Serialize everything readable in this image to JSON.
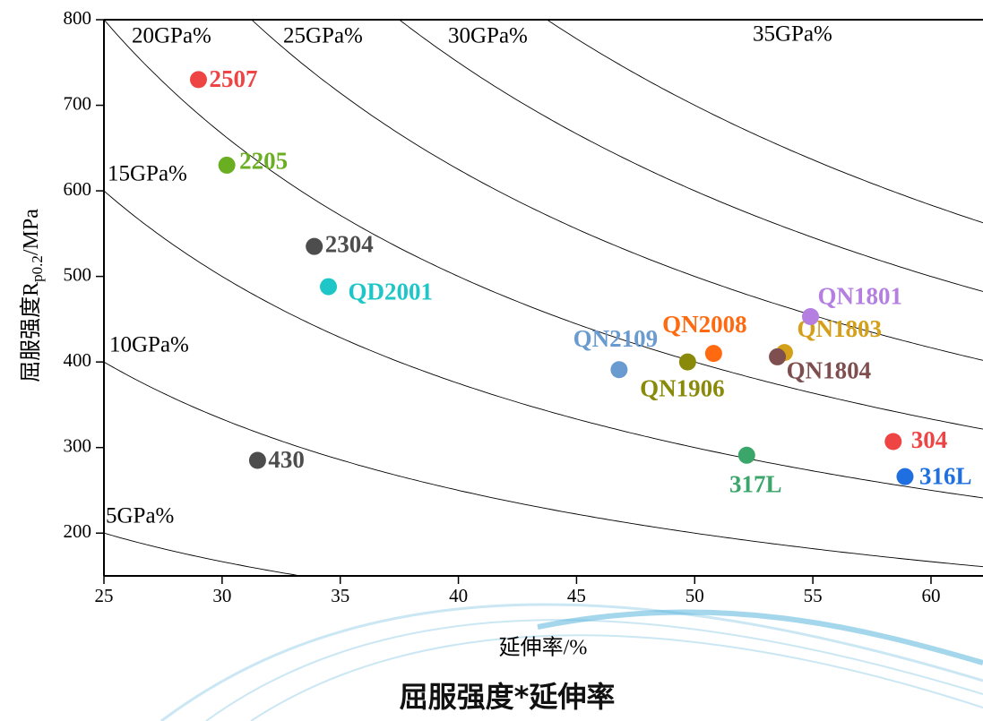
{
  "chart_data": {
    "type": "scatter",
    "caption": "屈服强度*延伸率",
    "xlabel": "延伸率/%",
    "ylabel": [
      "屈服强度R",
      "p0.2",
      "/MPa"
    ],
    "xlim": [
      25,
      62.2
    ],
    "ylim": [
      150,
      800
    ],
    "xticks": [
      25,
      30,
      35,
      40,
      45,
      50,
      55,
      60
    ],
    "yticks": [
      200,
      300,
      400,
      500,
      600,
      700,
      800
    ],
    "iso_curves": [
      {
        "value": 5,
        "label": "5GPa%"
      },
      {
        "value": 10,
        "label": "10GPa%"
      },
      {
        "value": 15,
        "label": "15GPa%"
      },
      {
        "value": 20,
        "label": "20GPa%"
      },
      {
        "value": 25,
        "label": "25GPa%"
      },
      {
        "value": 30,
        "label": "30GPa%"
      },
      {
        "value": 35,
        "label": "35GPa%"
      }
    ],
    "series": [
      {
        "name": "2507",
        "color": "#ee4444",
        "x": [
          29.0
        ],
        "values": [
          730
        ]
      },
      {
        "name": "2205",
        "color": "#6aae22",
        "x": [
          30.2
        ],
        "values": [
          630
        ]
      },
      {
        "name": "2304",
        "color": "#4d4d4d",
        "x": [
          33.9
        ],
        "values": [
          535
        ]
      },
      {
        "name": "QD2001",
        "color": "#1ec6c8",
        "x": [
          34.5
        ],
        "values": [
          488
        ]
      },
      {
        "name": "430",
        "color": "#4d4d4d",
        "x": [
          31.5
        ],
        "values": [
          285
        ]
      },
      {
        "name": "QN2109",
        "color": "#6a9bd0",
        "x": [
          46.8
        ],
        "values": [
          391
        ]
      },
      {
        "name": "QN1906",
        "color": "#8a8a0a",
        "x": [
          49.7
        ],
        "values": [
          400
        ]
      },
      {
        "name": "QN2008",
        "color": "#ff6a10",
        "x": [
          50.8
        ],
        "values": [
          410
        ]
      },
      {
        "name": "QN1803",
        "color": "#d4a01a",
        "x": [
          53.8
        ],
        "values": [
          411
        ]
      },
      {
        "name": "QN1804",
        "color": "#7f4f4f",
        "x": [
          53.5
        ],
        "values": [
          406
        ]
      },
      {
        "name": "QN1801",
        "color": "#b47fe0",
        "x": [
          54.9
        ],
        "values": [
          453
        ]
      },
      {
        "name": "317L",
        "color": "#3aa66a",
        "x": [
          52.2
        ],
        "values": [
          291
        ]
      },
      {
        "name": "304",
        "color": "#ee4444",
        "x": [
          58.4
        ],
        "values": [
          307
        ]
      },
      {
        "name": "316L",
        "color": "#1f6fe0",
        "x": [
          58.9
        ],
        "values": [
          266
        ]
      }
    ]
  }
}
